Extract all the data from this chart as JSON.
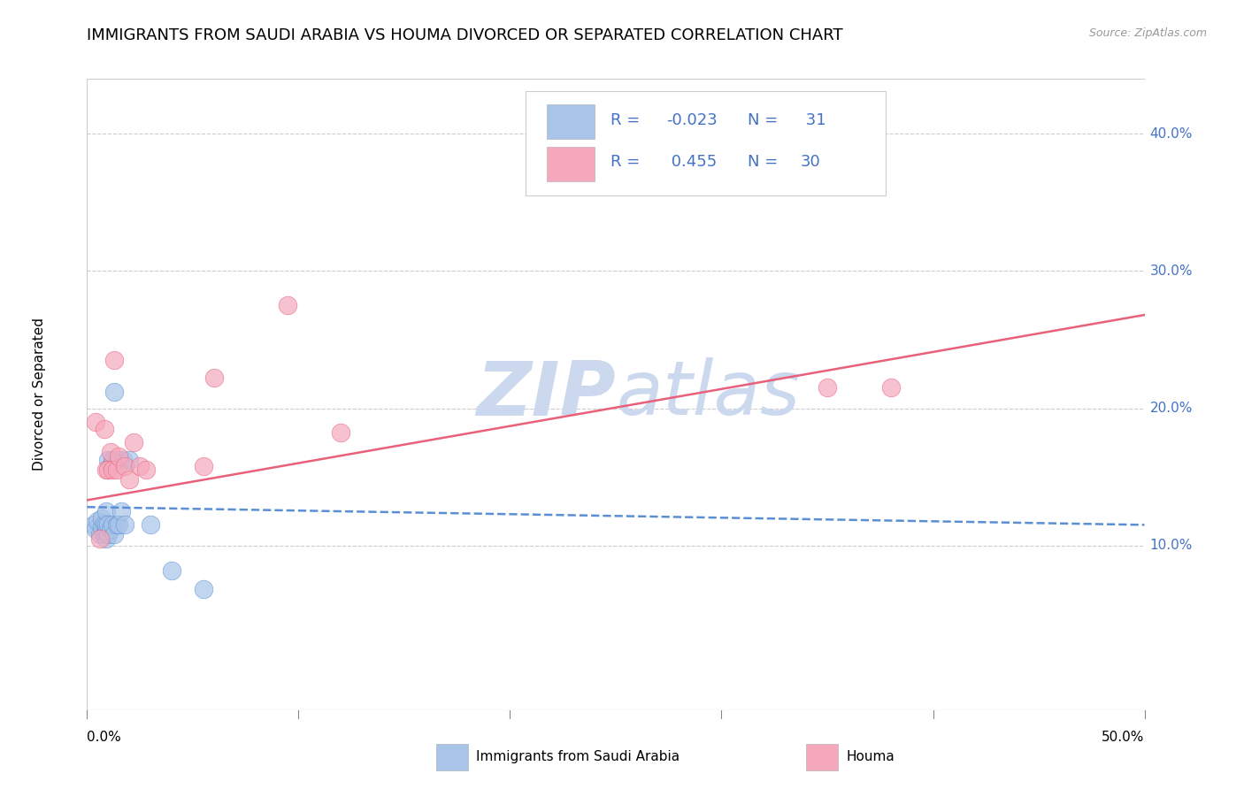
{
  "title": "IMMIGRANTS FROM SAUDI ARABIA VS HOUMA DIVORCED OR SEPARATED CORRELATION CHART",
  "source": "Source: ZipAtlas.com",
  "ylabel": "Divorced or Separated",
  "legend_blue_label": "Immigrants from Saudi Arabia",
  "legend_pink_label": "Houma",
  "xlim": [
    0.0,
    0.5
  ],
  "ylim": [
    -0.02,
    0.44
  ],
  "yticks": [
    0.1,
    0.2,
    0.3,
    0.4
  ],
  "ytick_labels": [
    "10.0%",
    "20.0%",
    "30.0%",
    "40.0%"
  ],
  "xticks": [
    0.0,
    0.1,
    0.2,
    0.3,
    0.4,
    0.5
  ],
  "xtick_labels": [
    "0.0%",
    "",
    "",
    "",
    "",
    "50.0%"
  ],
  "blue_scatter_x": [
    0.003,
    0.004,
    0.005,
    0.006,
    0.007,
    0.007,
    0.008,
    0.008,
    0.009,
    0.009,
    0.009,
    0.009,
    0.01,
    0.01,
    0.01,
    0.011,
    0.011,
    0.012,
    0.012,
    0.013,
    0.013,
    0.014,
    0.015,
    0.015,
    0.016,
    0.017,
    0.018,
    0.02,
    0.03,
    0.04,
    0.055
  ],
  "blue_scatter_y": [
    0.115,
    0.112,
    0.118,
    0.108,
    0.113,
    0.12,
    0.108,
    0.116,
    0.105,
    0.11,
    0.115,
    0.125,
    0.108,
    0.115,
    0.162,
    0.112,
    0.158,
    0.115,
    0.162,
    0.108,
    0.212,
    0.115,
    0.115,
    0.162,
    0.125,
    0.162,
    0.115,
    0.162,
    0.115,
    0.082,
    0.068
  ],
  "pink_scatter_x": [
    0.004,
    0.006,
    0.008,
    0.009,
    0.01,
    0.011,
    0.012,
    0.013,
    0.014,
    0.015,
    0.018,
    0.02,
    0.022,
    0.025,
    0.028,
    0.055,
    0.06,
    0.095,
    0.12,
    0.35,
    0.38
  ],
  "pink_scatter_y": [
    0.19,
    0.105,
    0.185,
    0.155,
    0.155,
    0.168,
    0.155,
    0.235,
    0.155,
    0.165,
    0.158,
    0.148,
    0.175,
    0.158,
    0.155,
    0.158,
    0.222,
    0.275,
    0.182,
    0.215,
    0.215
  ],
  "blue_line_x0": 0.0,
  "blue_line_x1": 0.5,
  "blue_line_y0": 0.128,
  "blue_line_y1": 0.115,
  "pink_line_x0": 0.0,
  "pink_line_x1": 0.5,
  "pink_line_y0": 0.133,
  "pink_line_y1": 0.268,
  "blue_color": "#a8c4e8",
  "pink_color": "#f5a8bc",
  "blue_line_color": "#5b8fd4",
  "pink_line_color": "#e8607a",
  "legend_text_color": "#4472c4",
  "watermark_color": "#ccd8ee",
  "background_color": "#ffffff",
  "grid_color": "#cccccc",
  "title_fontsize": 13,
  "axis_label_fontsize": 11,
  "tick_fontsize": 11,
  "legend_fontsize": 13
}
